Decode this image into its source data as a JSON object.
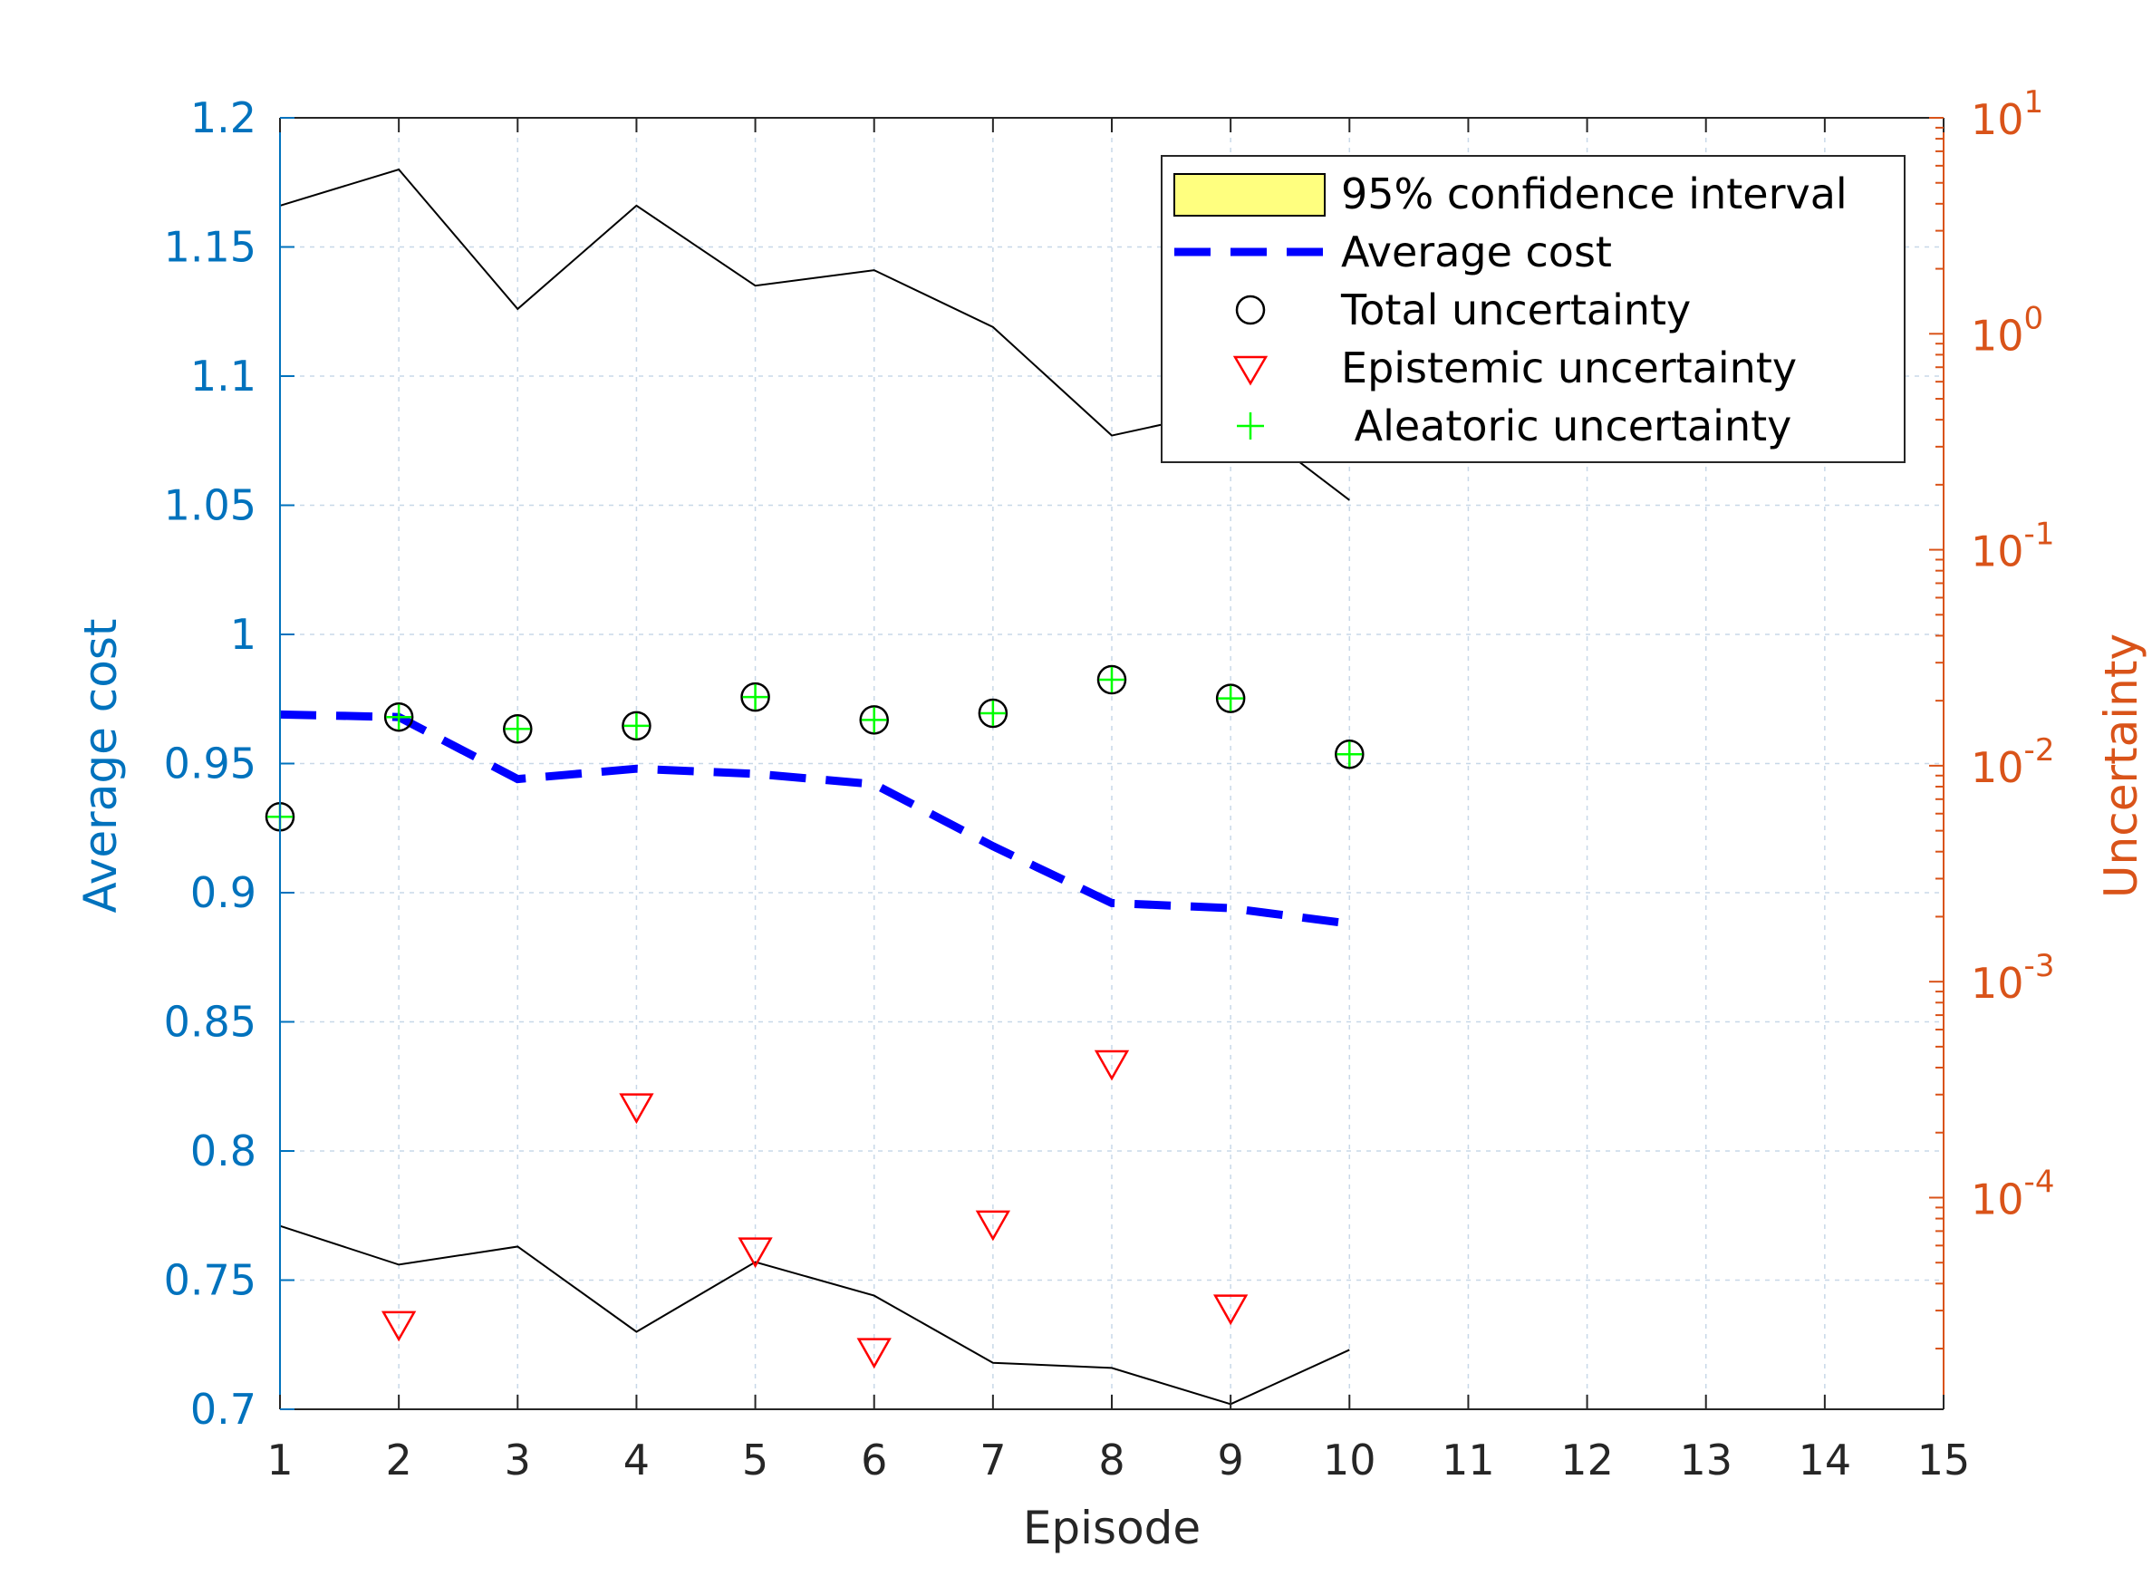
{
  "chart_data": {
    "type": "line",
    "xlabel": "Episode",
    "ylabel_left": "Average cost",
    "ylabel_right": "Uncertainty",
    "xlim": [
      1,
      15
    ],
    "ylim_left": [
      0.7,
      1.2
    ],
    "ylim_right_log10": [
      -4.98,
      1
    ],
    "right_axis_scale": "log",
    "grid": true,
    "legend_position": "top-right",
    "x_ticks": [
      "1",
      "2",
      "3",
      "4",
      "5",
      "6",
      "7",
      "8",
      "9",
      "10",
      "11",
      "12",
      "13",
      "14",
      "15"
    ],
    "y_left_ticks": [
      "0.7",
      "0.75",
      "0.8",
      "0.85",
      "0.9",
      "0.95",
      "1",
      "1.05",
      "1.1",
      "1.15",
      "1.2"
    ],
    "y_right_ticks": [
      {
        "base": "10",
        "exp": "-4"
      },
      {
        "base": "10",
        "exp": "-3"
      },
      {
        "base": "10",
        "exp": "-2"
      },
      {
        "base": "10",
        "exp": "-1"
      },
      {
        "base": "10",
        "exp": "0"
      },
      {
        "base": "10",
        "exp": "1"
      }
    ],
    "series": [
      {
        "name": "95% confidence interval",
        "kind": "band",
        "axis": "left",
        "x": [
          1,
          2,
          3,
          4,
          5,
          6,
          7,
          8,
          9,
          10
        ],
        "upper": [
          1.166,
          1.18,
          1.126,
          1.166,
          1.135,
          1.141,
          1.119,
          1.077,
          1.087,
          1.052
        ],
        "lower": [
          0.771,
          0.756,
          0.763,
          0.73,
          0.757,
          0.744,
          0.718,
          0.716,
          0.702,
          0.723
        ]
      },
      {
        "name": "Average cost",
        "kind": "line",
        "axis": "left",
        "x": [
          1,
          2,
          3,
          4,
          5,
          6,
          7,
          8,
          9,
          10
        ],
        "values": [
          0.969,
          0.968,
          0.944,
          0.948,
          0.946,
          0.942,
          0.918,
          0.896,
          0.894,
          0.888
        ]
      },
      {
        "name": "Total uncertainty",
        "kind": "marker",
        "axis": "right",
        "x": [
          1,
          2,
          3,
          4,
          5,
          6,
          7,
          8,
          9,
          10
        ],
        "values": [
          0.0058,
          0.0168,
          0.0148,
          0.0153,
          0.0208,
          0.0163,
          0.0175,
          0.025,
          0.0205,
          0.0113
        ]
      },
      {
        "name": "Epistemic uncertainty",
        "kind": "marker",
        "axis": "right",
        "x": [
          2,
          4,
          5,
          6,
          7,
          8,
          9
        ],
        "values": [
          2.6e-05,
          0.000265,
          5.7e-05,
          1.95e-05,
          7.6e-05,
          0.00042,
          3.1e-05
        ]
      },
      {
        "name": " Aleatoric uncertainty",
        "kind": "marker",
        "axis": "right",
        "x": [
          1,
          2,
          3,
          4,
          5,
          6,
          7,
          8,
          9,
          10
        ],
        "values": [
          0.0058,
          0.0168,
          0.0148,
          0.0153,
          0.0208,
          0.0163,
          0.0175,
          0.025,
          0.0205,
          0.0113
        ]
      }
    ]
  },
  "colors": {
    "left_axis": "#0072BD",
    "right_axis": "#D95319",
    "bottom_axis": "#262626",
    "average_cost": "#0000FF",
    "confidence_band": "#FFFF7F",
    "total": "#000000",
    "epistemic": "#FF0000",
    "aleatoric": "#00FF00",
    "grid": "#C8D8E8"
  },
  "legend": {
    "items": [
      {
        "label": "95% confidence interval",
        "symbol": "patch"
      },
      {
        "label": "Average cost",
        "symbol": "dashed-line"
      },
      {
        "label": "Total uncertainty",
        "symbol": "circle"
      },
      {
        "label": "Epistemic uncertainty",
        "symbol": "triangle-down"
      },
      {
        "label": " Aleatoric uncertainty",
        "symbol": "plus"
      }
    ]
  }
}
